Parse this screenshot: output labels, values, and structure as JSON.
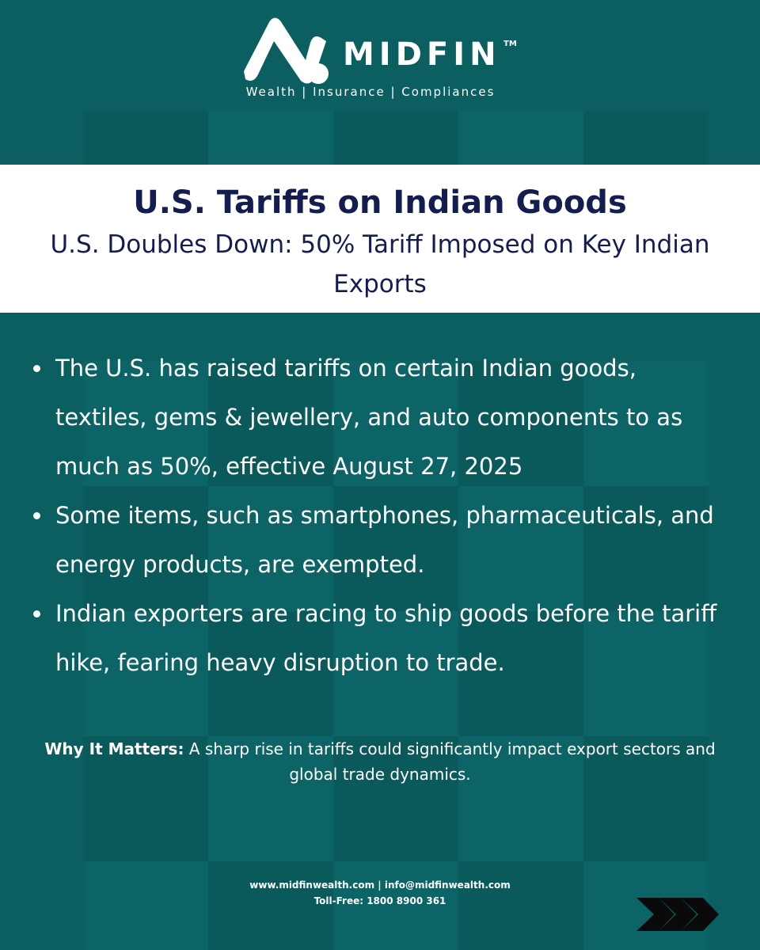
{
  "brand": {
    "name": "MIDFIN",
    "trademark": "TM",
    "tagline": "Wealth | Insurance | Compliances"
  },
  "header": {
    "title": "U.S. Tariffs on Indian Goods",
    "subtitle": "U.S. Doubles Down: 50% Tariff Imposed on Key Indian Exports"
  },
  "bullets": [
    "The U.S. has raised tariffs on certain Indian goods, textiles, gems & jewellery, and auto components to as much as 50%, effective August 27, 2025",
    "Some items, such as smartphones, pharmaceuticals, and energy products, are exempted.",
    "Indian exporters are racing to ship goods before the tariff hike, fearing heavy disruption to trade."
  ],
  "why_it_matters": {
    "label": "Why It Matters:",
    "text": "A sharp rise in tariffs could significantly impact export sectors and global trade dynamics."
  },
  "footer": {
    "contact": "www.midfinwealth.com | info@midfinwealth.com",
    "toll_free": "Toll-Free: 1800 8900 361"
  },
  "colors": {
    "background": "#0b5f61",
    "title_text": "#141d4f",
    "band": "#ffffff"
  },
  "icons": {
    "logo": "midfin-logo-mark",
    "next": "triple-chevron-right-icon"
  }
}
